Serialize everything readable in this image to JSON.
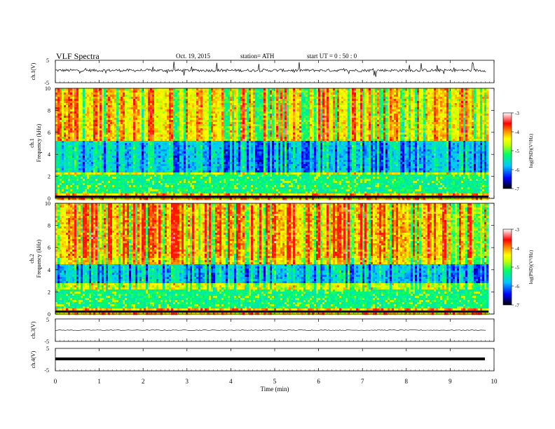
{
  "header": {
    "title": "VLF  Spectra",
    "date": "Oct. 19, 2015",
    "station": "station= ATH",
    "start": "start  UT =   0 : 50 : 0"
  },
  "chart_data": [
    {
      "type": "line",
      "name": "ch1-waveform",
      "ylabel": "ch.1(V)",
      "yticks": [
        "5",
        "-5"
      ],
      "ylim": [
        -5,
        5
      ],
      "approx_level": 0.5,
      "approx_noise_amplitude": 0.6,
      "spike_min": -2.5,
      "spike_max": 4.5
    },
    {
      "type": "heatmap",
      "name": "ch1-spectrogram",
      "ylabel": "ch.1\nFrequency (kHz)",
      "ylabel_lines": [
        "ch.1",
        "Frequency (kHz)"
      ],
      "yticks": [
        "0",
        "2",
        "4",
        "6",
        "8",
        "10"
      ],
      "ylim": [
        0,
        10
      ],
      "xlim": [
        0,
        9.83
      ],
      "colorbar": {
        "label": "log(PSD)(V²/Hz)",
        "ticks": [
          "-3",
          "-4",
          "-5",
          "-6",
          "-7"
        ],
        "range": [
          -7,
          -3
        ]
      },
      "notes": "Broadband vertical sferic streaks from 0 to 10 kHz; deep blue minimum near 2.5-5 kHz; horizontal tonal lines below 3 kHz."
    },
    {
      "type": "heatmap",
      "name": "ch2-spectrogram",
      "ylabel": "ch.2\nFrequency (kHz)",
      "ylabel_lines": [
        "ch.2",
        "Frequency (kHz)"
      ],
      "yticks": [
        "0",
        "2",
        "4",
        "6",
        "8",
        "10"
      ],
      "ylim": [
        0,
        10
      ],
      "xlim": [
        0,
        9.83
      ],
      "colorbar": {
        "label": "log(PSD)(V²/Hz)",
        "ticks": [
          "-3",
          "-4",
          "-5",
          "-6",
          "-7"
        ],
        "range": [
          -7,
          -3
        ]
      },
      "notes": "Stronger sferics (more red) than ch.1 above 5 kHz; blue band near 3-4.5 kHz."
    },
    {
      "type": "line",
      "name": "ch3-waveform",
      "ylabel": "ch.3(V)",
      "yticks": [
        "5",
        "-5"
      ],
      "ylim": [
        -5,
        5
      ],
      "approx_level": 0.0
    },
    {
      "type": "line",
      "name": "ch4-waveform",
      "ylabel": "ch.4(V)",
      "yticks": [
        "5",
        "-5"
      ],
      "ylim": [
        -5,
        5
      ],
      "approx_level": 0.0
    }
  ],
  "xaxis": {
    "label": "Time  (min)",
    "ticks": [
      "0",
      "1",
      "2",
      "3",
      "4",
      "5",
      "6",
      "7",
      "8",
      "9",
      "10"
    ],
    "xlim": [
      0,
      10
    ],
    "data_end": 9.83
  },
  "colors": {
    "colormap": [
      "#000000",
      "#0000ff",
      "#00c8ff",
      "#00ff66",
      "#c8ff00",
      "#ffff00",
      "#ff8800",
      "#ff0000",
      "#ffffff"
    ],
    "waveform": "#000000"
  }
}
